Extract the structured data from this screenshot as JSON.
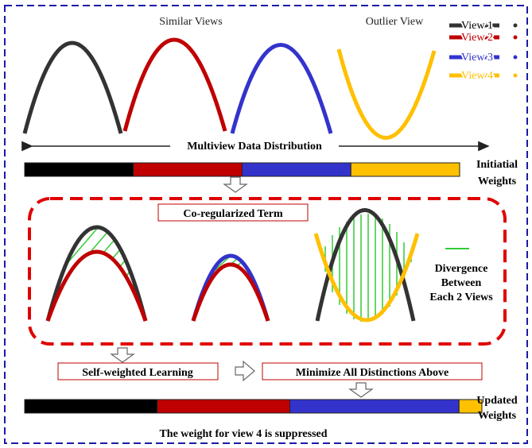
{
  "top": {
    "similar_views_label": "Similar Views",
    "outlier_view_label": "Outlier View",
    "distribution_label": "Multiview Data Distribution"
  },
  "legend": [
    {
      "label": "View 1",
      "color": "#333333"
    },
    {
      "label": "View 2",
      "color": "#c00000"
    },
    {
      "label": "View 3",
      "color": "#3333cc"
    },
    {
      "label": "View 4",
      "color": "#ffc000"
    }
  ],
  "initial_weights": {
    "label_line1": "Initiatial",
    "label_line2": "Weights",
    "fractions": [
      0.25,
      0.25,
      0.25,
      0.25
    ]
  },
  "coreg": {
    "title": "Co-regularized Term",
    "divergence_line1": "Divergence",
    "divergence_line2": "Between",
    "divergence_line3": "Each 2 Views",
    "divergence_color": "#33cc33"
  },
  "bottom": {
    "self_weighted_label": "Self-weighted Learning",
    "minimize_label": "Minimize All Distinctions Above",
    "updated_label_line1": "Updated",
    "updated_label_line2": "Weights",
    "caption": "The weight for view 4 is suppressed"
  },
  "updated_weights": {
    "fractions": [
      0.29,
      0.29,
      0.37,
      0.05
    ]
  },
  "colors": {
    "frame_blue": "#1a1aa6",
    "dash_red": "#e00000",
    "arrow_fill": "#ffffff",
    "arrow_stroke": "#666666"
  }
}
